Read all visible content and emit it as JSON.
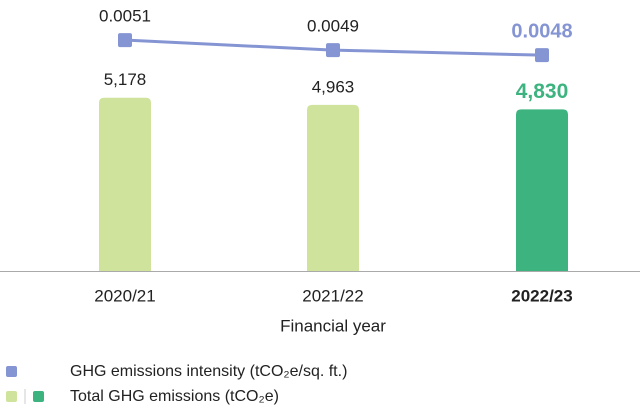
{
  "chart_data": {
    "type": "bar",
    "xlabel": "Financial year",
    "categories": [
      "2020/21",
      "2021/22",
      "2022/23"
    ],
    "series": [
      {
        "name": "Total GHG emissions (tCO₂e)",
        "type": "bar",
        "colors": [
          "#cfe39c",
          "#cfe39c",
          "#3db37f"
        ],
        "values": [
          5178,
          4963,
          4830
        ],
        "value_labels": [
          "5,178",
          "4,963",
          "4,830"
        ]
      },
      {
        "name": "GHG emissions intensity (tCO₂e/sq. ft.)",
        "type": "line",
        "axis": "y2",
        "color": "#8595d3",
        "values": [
          0.0051,
          0.0049,
          0.0048
        ]
      }
    ],
    "ylim": [
      0,
      7500
    ],
    "y2lim": [
      0.0005,
      0.0055
    ]
  }
}
